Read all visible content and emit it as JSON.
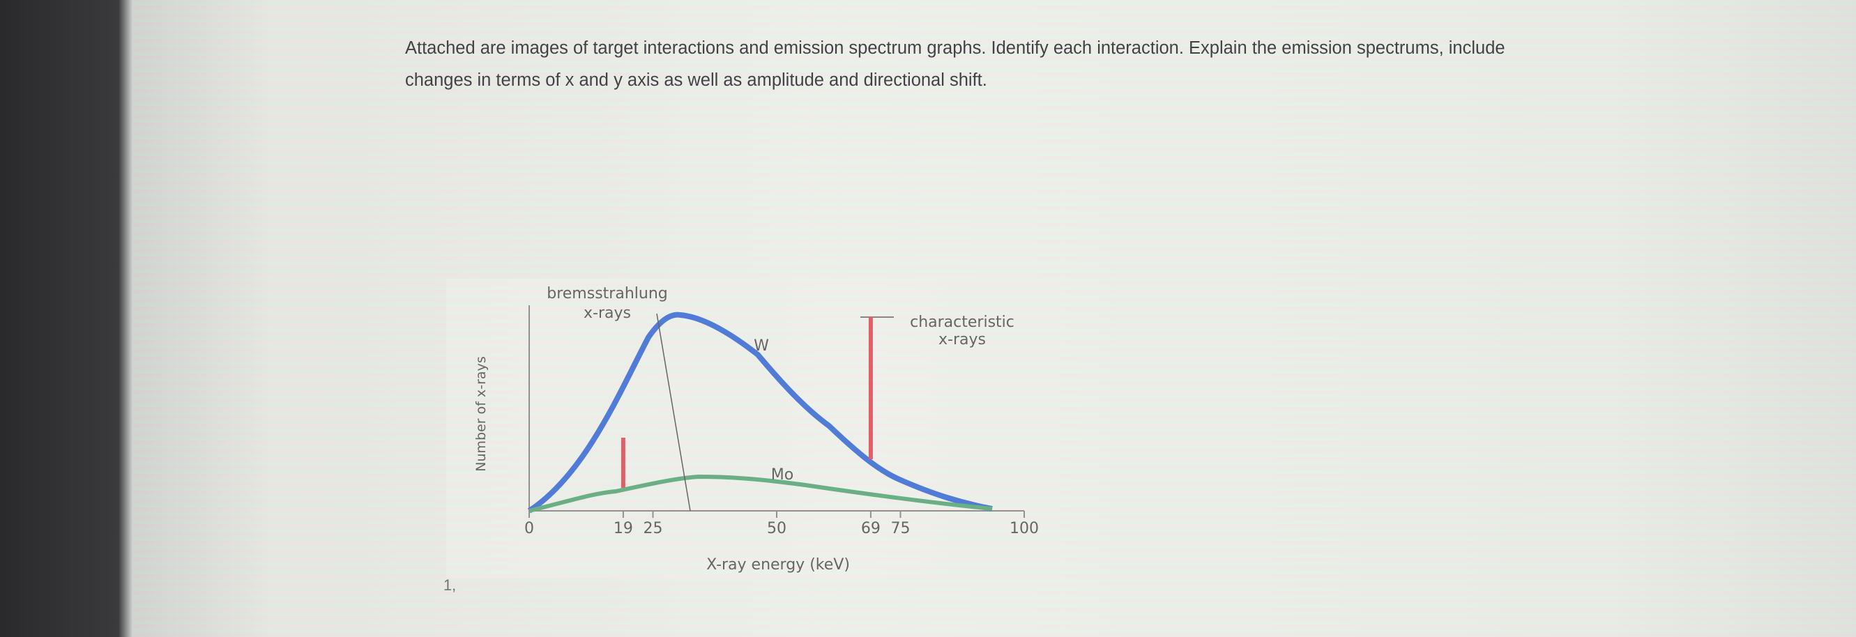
{
  "document": {
    "instructions": [
      "Attached are images of target interactions and emission spectrum graphs.  Identify each interaction.  Explain the emission spectrums, include",
      "changes in terms of x and y axis as well as amplitude and directional shift."
    ],
    "question_number": "1,"
  },
  "chart_data": {
    "type": "line",
    "xlabel": "X-ray energy (keV)",
    "ylabel": "Number of x-rays",
    "xlim": [
      0,
      100
    ],
    "xticks": [
      0,
      19,
      25,
      50,
      69,
      75,
      100
    ],
    "annotations": {
      "bremsstrahlung": [
        "bremsstrahlung",
        "x-rays"
      ],
      "characteristic": [
        "characteristic",
        "x-rays"
      ],
      "W": "W",
      "Mo": "Mo"
    }
  }
}
